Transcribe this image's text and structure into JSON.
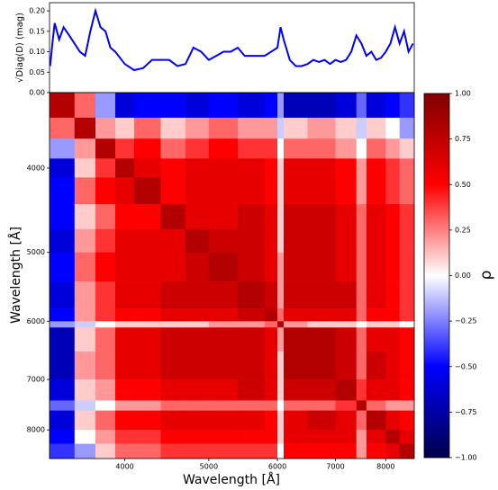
{
  "chart_data": [
    {
      "type": "line",
      "ylabel": "√Diag(D) (mag)",
      "color": "#0000ff",
      "xscale": "log",
      "xlim": [
        3275,
        8630
      ],
      "ylim": [
        0,
        0.22
      ],
      "yticks": [
        {
          "value": 0,
          "label": "0.00"
        },
        {
          "value": 0.05,
          "label": "0.05"
        },
        {
          "value": 0.1,
          "label": "0.10"
        },
        {
          "value": 0.15,
          "label": "0.15"
        },
        {
          "value": 0.2,
          "label": "0.20"
        }
      ],
      "x": [
        3280,
        3300,
        3320,
        3360,
        3400,
        3450,
        3500,
        3550,
        3600,
        3650,
        3700,
        3750,
        3800,
        3850,
        3900,
        4000,
        4100,
        4200,
        4300,
        4400,
        4500,
        4600,
        4700,
        4800,
        4900,
        5000,
        5100,
        5200,
        5300,
        5400,
        5500,
        5600,
        5700,
        5800,
        5900,
        6000,
        6050,
        6100,
        6200,
        6300,
        6400,
        6500,
        6600,
        6700,
        6800,
        6900,
        7000,
        7100,
        7200,
        7300,
        7400,
        7500,
        7600,
        7700,
        7800,
        7900,
        8000,
        8100,
        8200,
        8300,
        8400,
        8500,
        8600
      ],
      "values": [
        0.065,
        0.12,
        0.17,
        0.13,
        0.16,
        0.14,
        0.12,
        0.1,
        0.09,
        0.15,
        0.2,
        0.16,
        0.15,
        0.11,
        0.1,
        0.07,
        0.055,
        0.06,
        0.08,
        0.08,
        0.08,
        0.065,
        0.07,
        0.11,
        0.1,
        0.08,
        0.09,
        0.1,
        0.1,
        0.11,
        0.09,
        0.09,
        0.09,
        0.09,
        0.1,
        0.11,
        0.16,
        0.13,
        0.08,
        0.065,
        0.065,
        0.07,
        0.08,
        0.075,
        0.08,
        0.07,
        0.08,
        0.075,
        0.08,
        0.1,
        0.14,
        0.12,
        0.09,
        0.1,
        0.08,
        0.085,
        0.1,
        0.12,
        0.16,
        0.12,
        0.15,
        0.1,
        0.12
      ]
    },
    {
      "type": "heatmap",
      "xlabel": "Wavelength [Å]",
      "ylabel": "Wavelength [Å]",
      "xscale": "log",
      "yscale": "log",
      "y_inverted": true,
      "xlim": [
        3275,
        8630
      ],
      "ylim": [
        3275,
        8630
      ],
      "xticks": [
        4000,
        5000,
        6000,
        7000,
        8000
      ],
      "yticks": [
        4000,
        5000,
        6000,
        7000,
        8000
      ],
      "bins": [
        3275,
        3500,
        3700,
        3900,
        4100,
        4400,
        4700,
        5000,
        5400,
        5800,
        6000,
        6100,
        6500,
        7000,
        7400,
        7600,
        8000,
        8300,
        8630
      ],
      "colormap": "seismic",
      "clim": [
        -1,
        1
      ],
      "clabel": "ρ",
      "cticks": [
        {
          "value": -1,
          "label": "−1.00"
        },
        {
          "value": -0.75,
          "label": "−0.75"
        },
        {
          "value": -0.5,
          "label": "−0.50"
        },
        {
          "value": -0.25,
          "label": "−0.25"
        },
        {
          "value": 0,
          "label": "0.00"
        },
        {
          "value": 0.25,
          "label": "0.25"
        },
        {
          "value": 0.5,
          "label": "0.50"
        },
        {
          "value": 0.75,
          "label": "0.75"
        },
        {
          "value": 1,
          "label": "1.00"
        }
      ],
      "values": [
        [
          0.8,
          0.3,
          -0.2,
          -0.6,
          -0.5,
          -0.5,
          -0.6,
          -0.5,
          -0.6,
          -0.5,
          -0.2,
          -0.7,
          -0.7,
          -0.6,
          -0.3,
          -0.6,
          -0.5,
          -0.4
        ],
        [
          0.3,
          0.8,
          0.2,
          0.1,
          0.3,
          0.1,
          0.2,
          0.3,
          0.2,
          0.2,
          -0.1,
          0.1,
          0.2,
          0.1,
          -0.1,
          0.1,
          0.0,
          -0.2
        ],
        [
          -0.2,
          0.2,
          0.8,
          0.4,
          0.5,
          0.3,
          0.4,
          0.5,
          0.4,
          0.4,
          0.0,
          0.3,
          0.3,
          0.2,
          0.0,
          0.3,
          0.2,
          0.1
        ],
        [
          -0.6,
          0.1,
          0.4,
          0.8,
          0.6,
          0.5,
          0.6,
          0.6,
          0.6,
          0.5,
          0.1,
          0.6,
          0.6,
          0.5,
          0.2,
          0.5,
          0.4,
          0.3
        ],
        [
          -0.5,
          0.3,
          0.5,
          0.6,
          0.8,
          0.5,
          0.6,
          0.6,
          0.6,
          0.5,
          0.1,
          0.6,
          0.6,
          0.5,
          0.2,
          0.5,
          0.4,
          0.3
        ],
        [
          -0.5,
          0.1,
          0.3,
          0.5,
          0.5,
          0.8,
          0.6,
          0.6,
          0.7,
          0.6,
          0.1,
          0.7,
          0.7,
          0.6,
          0.3,
          0.6,
          0.5,
          0.4
        ],
        [
          -0.6,
          0.2,
          0.4,
          0.6,
          0.6,
          0.6,
          0.8,
          0.7,
          0.7,
          0.6,
          0.1,
          0.7,
          0.7,
          0.6,
          0.3,
          0.6,
          0.5,
          0.4
        ],
        [
          -0.5,
          0.3,
          0.5,
          0.6,
          0.6,
          0.6,
          0.7,
          0.8,
          0.7,
          0.6,
          0.2,
          0.7,
          0.7,
          0.6,
          0.3,
          0.6,
          0.5,
          0.4
        ],
        [
          -0.6,
          0.2,
          0.4,
          0.6,
          0.6,
          0.7,
          0.7,
          0.7,
          0.8,
          0.7,
          0.2,
          0.7,
          0.7,
          0.7,
          0.3,
          0.6,
          0.5,
          0.4
        ],
        [
          -0.5,
          0.2,
          0.4,
          0.5,
          0.5,
          0.6,
          0.6,
          0.6,
          0.7,
          0.8,
          0.3,
          0.6,
          0.6,
          0.6,
          0.3,
          0.5,
          0.5,
          0.4
        ],
        [
          -0.2,
          -0.1,
          0.0,
          0.1,
          0.1,
          0.1,
          0.1,
          0.2,
          0.2,
          0.3,
          0.8,
          0.2,
          0.1,
          0.1,
          0.0,
          0.1,
          0.1,
          0.0
        ],
        [
          -0.7,
          0.1,
          0.3,
          0.6,
          0.6,
          0.7,
          0.7,
          0.7,
          0.7,
          0.6,
          0.2,
          0.8,
          0.8,
          0.7,
          0.3,
          0.6,
          0.6,
          0.5
        ],
        [
          -0.7,
          0.2,
          0.3,
          0.6,
          0.6,
          0.7,
          0.7,
          0.7,
          0.7,
          0.6,
          0.1,
          0.8,
          0.8,
          0.7,
          0.3,
          0.7,
          0.6,
          0.5
        ],
        [
          -0.6,
          0.1,
          0.2,
          0.5,
          0.5,
          0.6,
          0.6,
          0.6,
          0.7,
          0.6,
          0.1,
          0.7,
          0.7,
          0.8,
          0.4,
          0.6,
          0.6,
          0.5
        ],
        [
          -0.3,
          -0.1,
          0.0,
          0.2,
          0.2,
          0.3,
          0.3,
          0.3,
          0.3,
          0.3,
          0.0,
          0.3,
          0.3,
          0.4,
          0.8,
          0.3,
          0.2,
          0.2
        ],
        [
          -0.6,
          0.1,
          0.3,
          0.5,
          0.5,
          0.6,
          0.6,
          0.6,
          0.6,
          0.5,
          0.1,
          0.6,
          0.7,
          0.6,
          0.3,
          0.8,
          0.6,
          0.5
        ],
        [
          -0.5,
          0.0,
          0.2,
          0.4,
          0.4,
          0.5,
          0.5,
          0.5,
          0.5,
          0.5,
          0.1,
          0.6,
          0.6,
          0.6,
          0.2,
          0.6,
          0.8,
          0.6
        ],
        [
          -0.4,
          -0.2,
          0.1,
          0.3,
          0.3,
          0.4,
          0.4,
          0.4,
          0.4,
          0.4,
          0.0,
          0.5,
          0.5,
          0.5,
          0.2,
          0.5,
          0.6,
          0.8
        ]
      ]
    }
  ]
}
